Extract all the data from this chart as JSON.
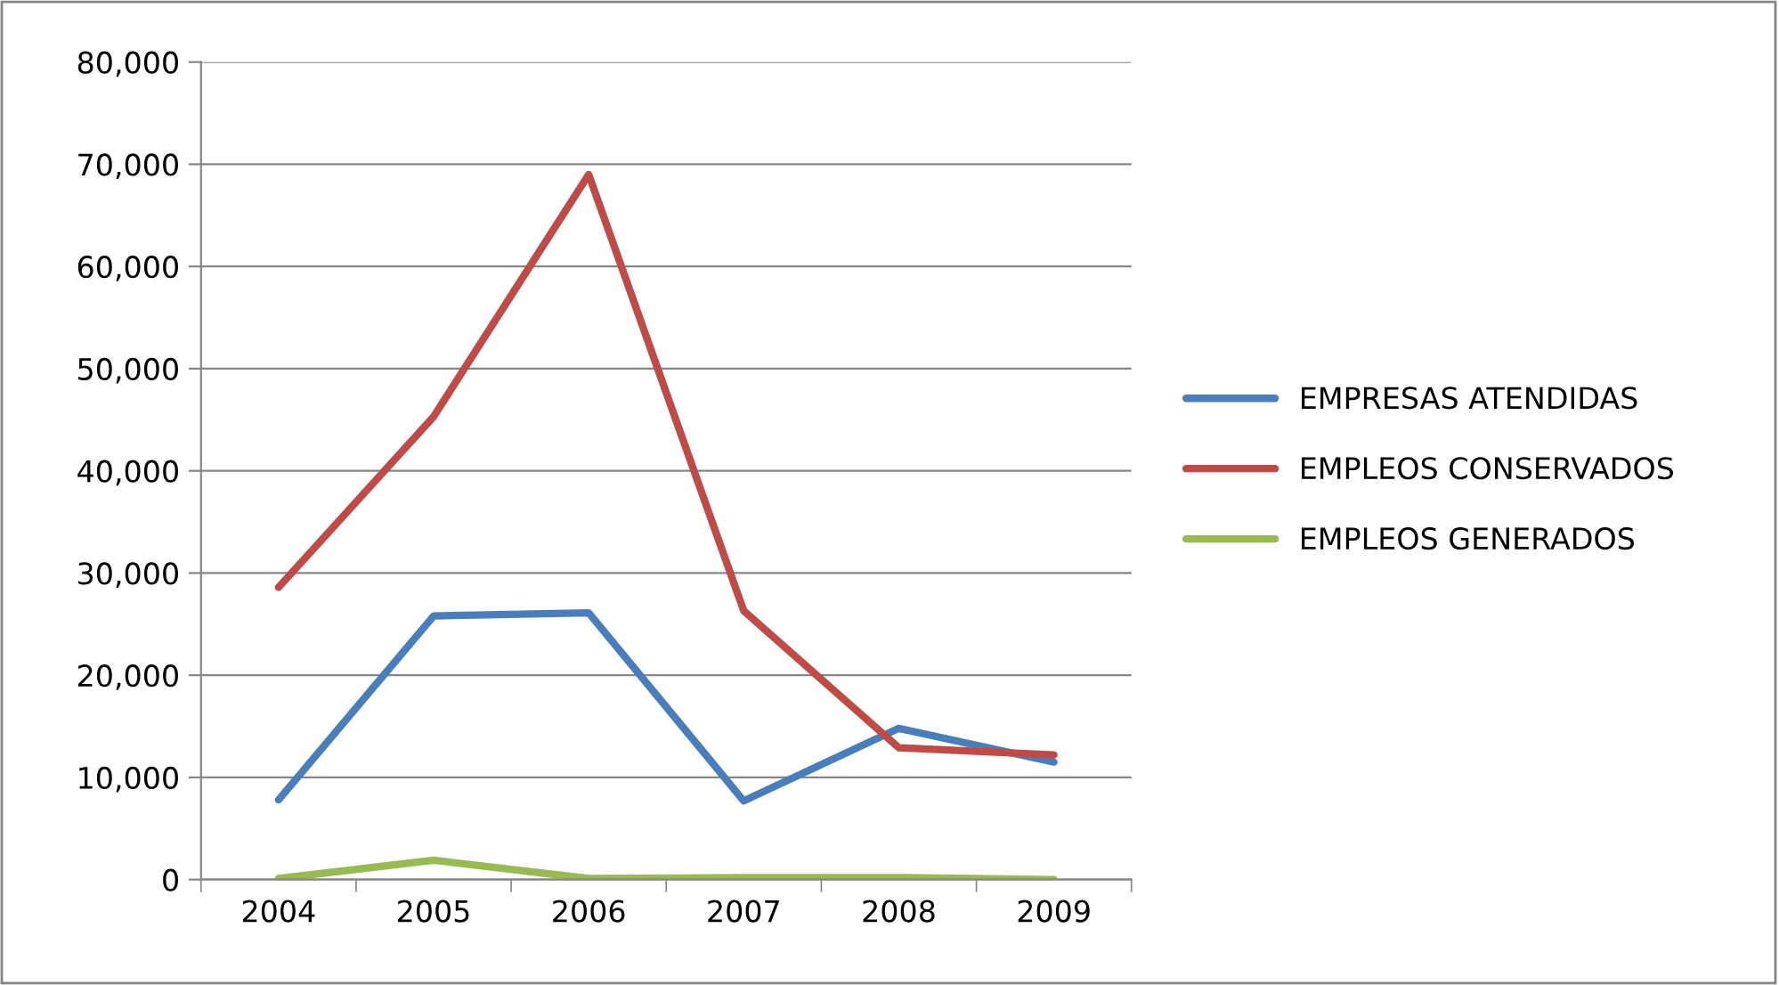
{
  "chart_data": {
    "type": "line",
    "categories": [
      "2004",
      "2005",
      "2006",
      "2007",
      "2008",
      "2009"
    ],
    "series": [
      {
        "name": "EMPRESAS ATENDIDAS",
        "color": "#4a7ebb",
        "values": [
          7800,
          25800,
          26100,
          7700,
          14800,
          11500
        ]
      },
      {
        "name": "EMPLEOS CONSERVADOS",
        "color": "#be4b48",
        "values": [
          28600,
          45300,
          69000,
          26300,
          12900,
          12200
        ]
      },
      {
        "name": "EMPLEOS GENERADOS",
        "color": "#98b954",
        "values": [
          100,
          1900,
          100,
          200,
          200,
          0
        ]
      }
    ],
    "ylim": [
      0,
      80000
    ],
    "yticks": [
      {
        "value": 0,
        "label": "0"
      },
      {
        "value": 10000,
        "label": "10,000"
      },
      {
        "value": 20000,
        "label": "20,000"
      },
      {
        "value": 30000,
        "label": "30,000"
      },
      {
        "value": 40000,
        "label": "40,000"
      },
      {
        "value": 50000,
        "label": "50,000"
      },
      {
        "value": 60000,
        "label": "60,000"
      },
      {
        "value": 70000,
        "label": "70,000"
      },
      {
        "value": 80000,
        "label": "80,000"
      }
    ],
    "grid": "y",
    "legend": "right",
    "marker": "none",
    "line_style": "solid"
  }
}
